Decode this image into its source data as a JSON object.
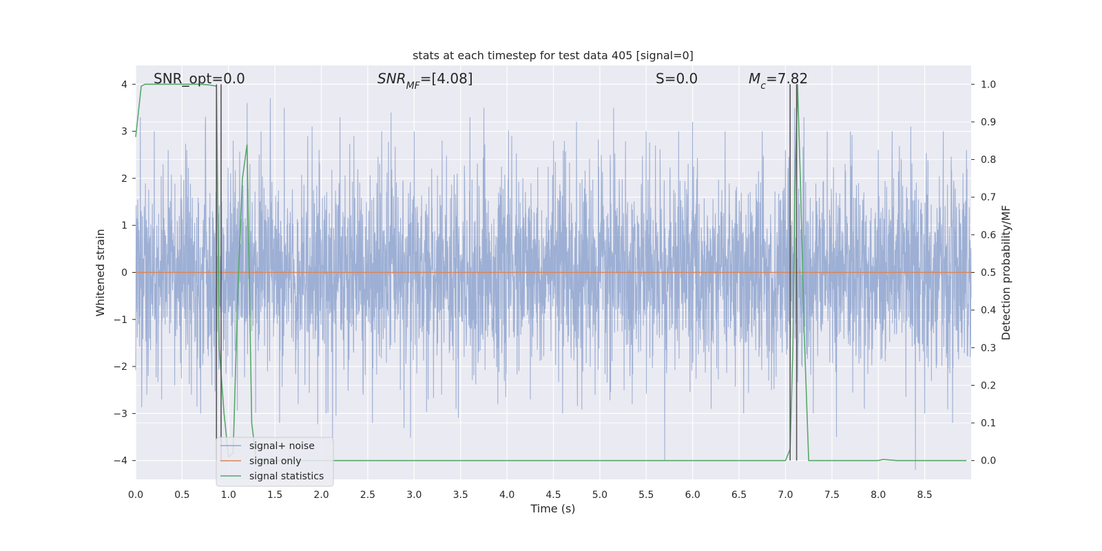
{
  "chart_data": {
    "type": "line",
    "title": "stats at each timestep for test data 405 [signal=0]",
    "xlabel": "Time (s)",
    "ylabel_left": "Whitened strain",
    "ylabel_right": "Detection probability/MF",
    "xlim": [
      0.0,
      9.0
    ],
    "ylim_left": [
      -4.4,
      4.4
    ],
    "ylim_right": [
      -0.05,
      1.05
    ],
    "x_ticks": [
      "0.0",
      "0.5",
      "1.0",
      "1.5",
      "2.0",
      "2.5",
      "3.0",
      "3.5",
      "4.0",
      "4.5",
      "5.0",
      "5.5",
      "6.0",
      "6.5",
      "7.0",
      "7.5",
      "8.0",
      "8.5"
    ],
    "y_ticks_left": [
      "4",
      "3",
      "2",
      "1",
      "0",
      "−1",
      "−2",
      "−3",
      "−4"
    ],
    "y_ticks_right": [
      "1.0",
      "0.9",
      "0.8",
      "0.7",
      "0.6",
      "0.5",
      "0.4",
      "0.3",
      "0.2",
      "0.1",
      "0.0"
    ],
    "grid": true,
    "legend_placement": "lower-left",
    "annotations": [
      {
        "base": "SNR_opt=0.0",
        "sub": "",
        "rest": ""
      },
      {
        "base": "SNR",
        "sub": "MF",
        "rest": "=[4.08]"
      },
      {
        "base": "S",
        "sub": "",
        "rest": "=0.0"
      },
      {
        "base": "M",
        "sub": "c",
        "rest": "=7.82"
      }
    ],
    "series": [
      {
        "name": "signal+ noise",
        "color": "#8fa5cf",
        "axis": "left",
        "envelope_std": 1.0,
        "spike_points": [
          [
            0.05,
            3.3
          ],
          [
            0.12,
            -2.6
          ],
          [
            0.2,
            3.0
          ],
          [
            0.28,
            -2.7
          ],
          [
            0.35,
            2.6
          ],
          [
            0.42,
            -2.4
          ],
          [
            0.55,
            2.6
          ],
          [
            0.6,
            -2.6
          ],
          [
            0.7,
            -3.0
          ],
          [
            0.75,
            3.1
          ],
          [
            0.82,
            -2.4
          ],
          [
            0.87,
            2.1
          ],
          [
            1.05,
            2.8
          ],
          [
            1.2,
            3.6
          ],
          [
            1.35,
            3.0
          ],
          [
            1.45,
            3.7
          ],
          [
            1.55,
            -3.2
          ],
          [
            1.6,
            3.5
          ],
          [
            1.75,
            -2.8
          ],
          [
            1.9,
            3.1
          ],
          [
            2.05,
            -3.0
          ],
          [
            2.2,
            3.3
          ],
          [
            2.35,
            2.9
          ],
          [
            2.45,
            -2.6
          ],
          [
            2.55,
            -3.2
          ],
          [
            2.65,
            3.0
          ],
          [
            2.75,
            3.4
          ],
          [
            2.85,
            -2.5
          ],
          [
            3.0,
            3.0
          ],
          [
            3.15,
            -2.7
          ],
          [
            3.3,
            2.8
          ],
          [
            3.45,
            -2.9
          ],
          [
            3.6,
            3.3
          ],
          [
            3.75,
            3.5
          ],
          [
            3.9,
            -2.8
          ],
          [
            4.05,
            2.9
          ],
          [
            4.25,
            -2.7
          ],
          [
            4.5,
            2.8
          ],
          [
            4.6,
            -3.0
          ],
          [
            4.75,
            3.2
          ],
          [
            4.95,
            -2.6
          ],
          [
            5.15,
            3.5
          ],
          [
            5.35,
            -2.8
          ],
          [
            5.5,
            3.0
          ],
          [
            5.6,
            2.7
          ],
          [
            5.7,
            -4.0
          ],
          [
            5.85,
            3.0
          ],
          [
            6.0,
            3.2
          ],
          [
            6.2,
            -2.9
          ],
          [
            6.35,
            3.0
          ],
          [
            6.55,
            -3.0
          ],
          [
            6.75,
            3.0
          ],
          [
            6.85,
            -2.5
          ],
          [
            7.0,
            2.6
          ],
          [
            7.1,
            3.5
          ],
          [
            7.2,
            3.3
          ],
          [
            7.3,
            -3.0
          ],
          [
            7.45,
            3.0
          ],
          [
            7.55,
            -3.5
          ],
          [
            7.7,
            3.0
          ],
          [
            7.85,
            -2.9
          ],
          [
            8.0,
            2.6
          ],
          [
            8.15,
            3.0
          ],
          [
            8.35,
            3.1
          ],
          [
            8.5,
            -3.0
          ],
          [
            8.7,
            3.0
          ],
          [
            8.8,
            -3.2
          ],
          [
            8.95,
            2.6
          ]
        ]
      },
      {
        "name": "signal only",
        "color": "#dd8452",
        "axis": "left",
        "x": [
          0.0,
          9.0
        ],
        "y": [
          0.0,
          0.0
        ]
      },
      {
        "name": "signal statistics",
        "color": "#55a868",
        "axis": "right",
        "x": [
          0.0,
          0.06,
          0.1,
          0.2,
          0.3,
          0.4,
          0.5,
          0.6,
          0.7,
          0.8,
          0.87,
          0.9,
          0.95,
          1.0,
          1.05,
          1.1,
          1.15,
          1.2,
          1.25,
          1.3,
          2.0,
          3.0,
          4.0,
          5.0,
          6.0,
          7.0,
          7.05,
          7.08,
          7.1,
          7.13,
          7.16,
          7.2,
          7.25,
          7.3,
          8.0,
          8.05,
          8.1,
          8.2,
          8.5,
          8.95
        ],
        "y": [
          0.86,
          0.995,
          1.0,
          1.0,
          1.0,
          1.0,
          1.0,
          1.0,
          1.0,
          0.998,
          0.995,
          0.3,
          0.13,
          0.01,
          0.02,
          0.45,
          0.75,
          0.84,
          0.1,
          0.0,
          0.0,
          0.0,
          0.0,
          0.0,
          0.0,
          0.0,
          0.03,
          0.3,
          0.7,
          1.0,
          0.75,
          0.35,
          0.0,
          0.0,
          0.0,
          0.003,
          0.002,
          0.0,
          0.0,
          0.0
        ]
      }
    ],
    "vertical_markers": [
      0.87,
      0.92,
      7.05,
      7.12
    ]
  }
}
